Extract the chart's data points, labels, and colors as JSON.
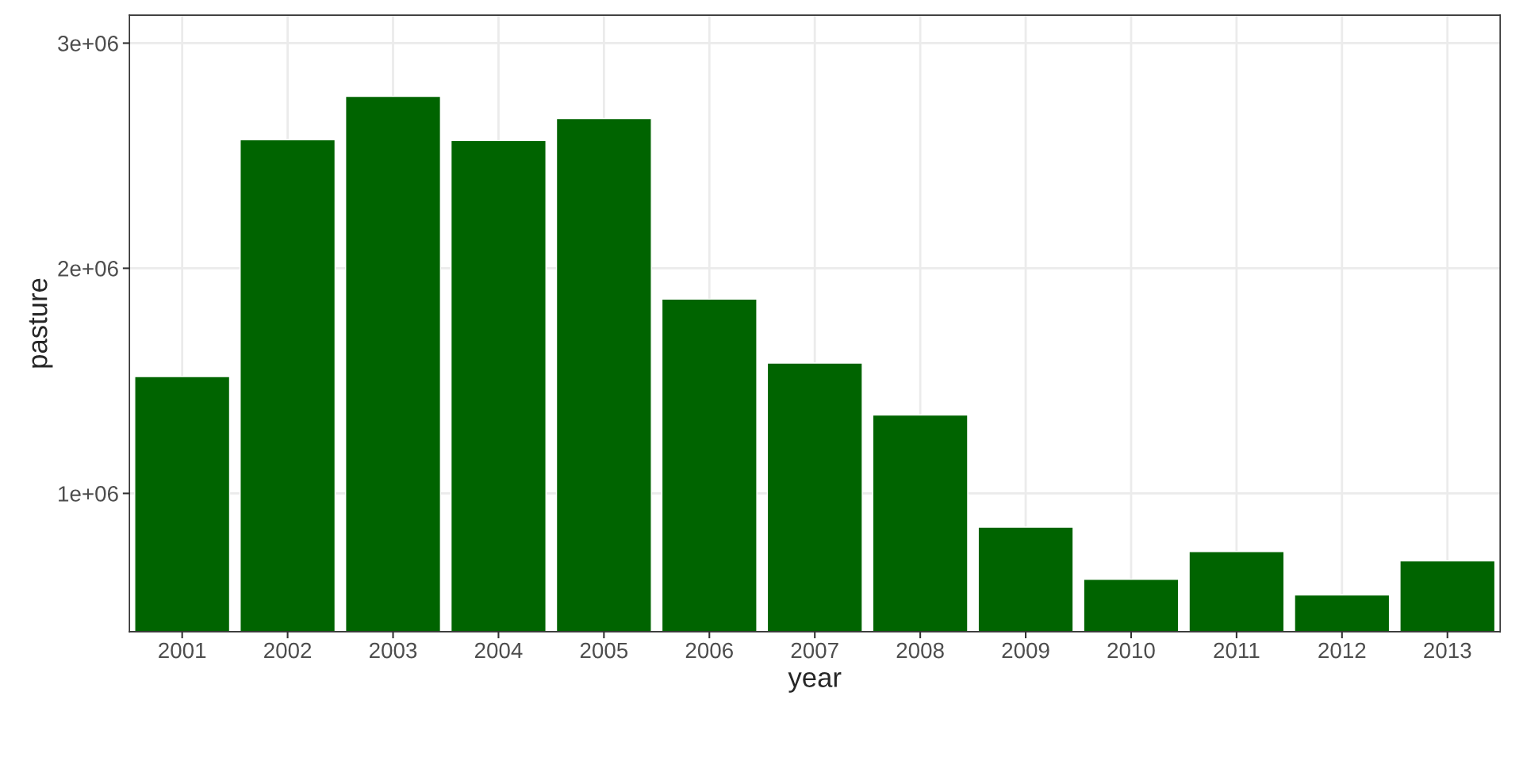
{
  "chart_data": {
    "type": "bar",
    "xlabel": "year",
    "ylabel": "pasture",
    "categories": [
      "2001",
      "2002",
      "2003",
      "2004",
      "2005",
      "2006",
      "2007",
      "2008",
      "2009",
      "2010",
      "2011",
      "2012",
      "2013"
    ],
    "values": [
      1519000,
      2571000,
      2764000,
      2567000,
      2665000,
      1863000,
      1579000,
      1348000,
      850000,
      618000,
      742000,
      549000,
      700000
    ],
    "color": "#006400",
    "ylim": [
      386000,
      3124000
    ],
    "yticks": [
      {
        "value": 1000000,
        "label": "1e+06"
      },
      {
        "value": 2000000,
        "label": "2e+06"
      },
      {
        "value": 3000000,
        "label": "3e+06"
      }
    ],
    "grid": true
  }
}
